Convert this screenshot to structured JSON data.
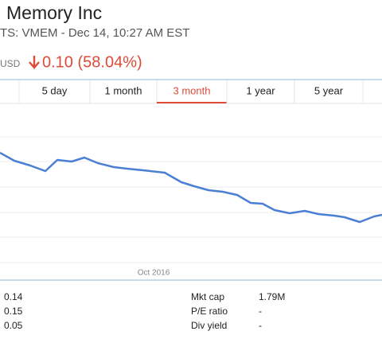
{
  "header": {
    "title": "Memory Inc",
    "subtitle": "TS: VMEM - Dec 14, 10:27 AM EST",
    "currency": "USD",
    "change": "0.10 (58.04%)"
  },
  "tabs": [
    "5 day",
    "1 month",
    "3 month",
    "1 year",
    "5 year"
  ],
  "chart": {
    "x_label": "Oct 2016"
  },
  "stats": {
    "left": [
      "0.14",
      "0.15",
      "0.05"
    ],
    "right": [
      {
        "label": "Mkt cap",
        "value": "1.79M"
      },
      {
        "label": "P/E ratio",
        "value": "-"
      },
      {
        "label": "Div yield",
        "value": "-"
      }
    ]
  }
}
